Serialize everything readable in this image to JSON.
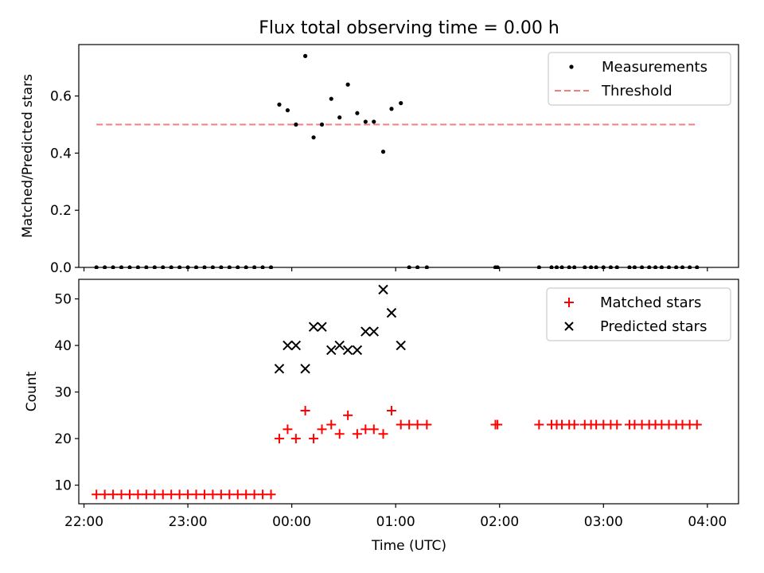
{
  "chart_data": [
    {
      "type": "scatter",
      "title": "Flux total observing time = 0.00 h",
      "ylabel": "Matched/Predicted stars",
      "xlabel": "",
      "xlim": [
        -2.05,
        4.3
      ],
      "ylim": [
        0,
        0.78
      ],
      "yticks": [
        0.0,
        0.2,
        0.4,
        0.6
      ],
      "ytick_labels": [
        "0.0",
        "0.2",
        "0.4",
        "0.6"
      ],
      "xticks": [
        -2,
        -1,
        0,
        1,
        2,
        3,
        4
      ],
      "legend": {
        "position": "top-right",
        "entries": [
          "Measurements",
          "Threshold"
        ]
      },
      "threshold": {
        "name": "Threshold",
        "value": 0.5,
        "x_range": [
          -1.88,
          3.9
        ],
        "color": "#f08080"
      },
      "series": [
        {
          "name": "Measurements",
          "color": "#000000",
          "marker": "dot",
          "x": [
            -1.88,
            -1.8,
            -1.72,
            -1.64,
            -1.56,
            -1.48,
            -1.4,
            -1.32,
            -1.24,
            -1.16,
            -1.08,
            -1.0,
            -0.92,
            -0.84,
            -0.76,
            -0.68,
            -0.6,
            -0.52,
            -0.44,
            -0.36,
            -0.28,
            -0.2,
            -0.12,
            -0.04,
            0.04,
            0.13,
            0.21,
            0.29,
            0.38,
            0.46,
            0.54,
            0.63,
            0.71,
            0.79,
            0.88,
            0.96,
            1.05,
            1.13,
            1.21,
            1.3,
            1.96,
            1.98,
            2.38,
            2.5,
            2.55,
            2.6,
            2.67,
            2.72,
            2.82,
            2.88,
            2.93,
            3.0,
            3.07,
            3.13,
            3.25,
            3.3,
            3.37,
            3.44,
            3.5,
            3.56,
            3.63,
            3.7,
            3.76,
            3.83,
            3.9
          ],
          "y": [
            0,
            0,
            0,
            0,
            0,
            0,
            0,
            0,
            0,
            0,
            0,
            0,
            0,
            0,
            0,
            0,
            0,
            0,
            0,
            0,
            0,
            0,
            0.57,
            0.55,
            0.5,
            0.74,
            0.455,
            0.5,
            0.59,
            0.525,
            0.64,
            0.54,
            0.51,
            0.51,
            0.405,
            0.555,
            0.575,
            0,
            0,
            0,
            0,
            0,
            0,
            0,
            0,
            0,
            0,
            0,
            0,
            0,
            0,
            0,
            0,
            0,
            0,
            0,
            0,
            0,
            0,
            0,
            0,
            0,
            0,
            0,
            0
          ]
        }
      ]
    },
    {
      "type": "scatter",
      "title": "",
      "ylabel": "Count",
      "xlabel": "Time (UTC)",
      "xlim": [
        -2.05,
        4.3
      ],
      "ylim": [
        6,
        54.2
      ],
      "yticks": [
        10,
        20,
        30,
        40,
        50
      ],
      "ytick_labels": [
        "10",
        "20",
        "30",
        "40",
        "50"
      ],
      "xticks": [
        -2,
        -1,
        0,
        1,
        2,
        3,
        4
      ],
      "xtick_labels": [
        "22:00",
        "23:00",
        "00:00",
        "01:00",
        "02:00",
        "03:00",
        "04:00"
      ],
      "legend": {
        "position": "top-right",
        "entries": [
          "Matched stars",
          "Predicted stars"
        ]
      },
      "series": [
        {
          "name": "Matched stars",
          "color": "#ff0000",
          "marker": "plus",
          "x": [
            -1.88,
            -1.8,
            -1.72,
            -1.64,
            -1.56,
            -1.48,
            -1.4,
            -1.32,
            -1.24,
            -1.16,
            -1.08,
            -1.0,
            -0.92,
            -0.84,
            -0.76,
            -0.68,
            -0.6,
            -0.52,
            -0.44,
            -0.36,
            -0.28,
            -0.2,
            -0.12,
            -0.04,
            0.04,
            0.13,
            0.21,
            0.29,
            0.38,
            0.46,
            0.54,
            0.63,
            0.71,
            0.79,
            0.88,
            0.96,
            1.05,
            1.13,
            1.21,
            1.3,
            1.96,
            1.98,
            2.38,
            2.5,
            2.55,
            2.6,
            2.67,
            2.72,
            2.82,
            2.88,
            2.93,
            3.0,
            3.07,
            3.13,
            3.25,
            3.3,
            3.37,
            3.44,
            3.5,
            3.56,
            3.63,
            3.7,
            3.76,
            3.83,
            3.9
          ],
          "y": [
            8,
            8,
            8,
            8,
            8,
            8,
            8,
            8,
            8,
            8,
            8,
            8,
            8,
            8,
            8,
            8,
            8,
            8,
            8,
            8,
            8,
            8,
            20,
            22,
            20,
            26,
            20,
            22,
            23,
            21,
            25,
            21,
            22,
            22,
            21,
            26,
            23,
            23,
            23,
            23,
            23,
            23,
            23,
            23,
            23,
            23,
            23,
            23,
            23,
            23,
            23,
            23,
            23,
            23,
            23,
            23,
            23,
            23,
            23,
            23,
            23,
            23,
            23,
            23,
            23
          ]
        },
        {
          "name": "Predicted stars",
          "color": "#000000",
          "marker": "x",
          "x": [
            -0.12,
            -0.04,
            0.04,
            0.13,
            0.21,
            0.29,
            0.38,
            0.46,
            0.54,
            0.63,
            0.71,
            0.79,
            0.88,
            0.96,
            1.05
          ],
          "y": [
            35,
            40,
            40,
            35,
            44,
            44,
            39,
            40,
            39,
            39,
            43,
            43,
            52,
            47,
            40
          ]
        }
      ]
    }
  ]
}
